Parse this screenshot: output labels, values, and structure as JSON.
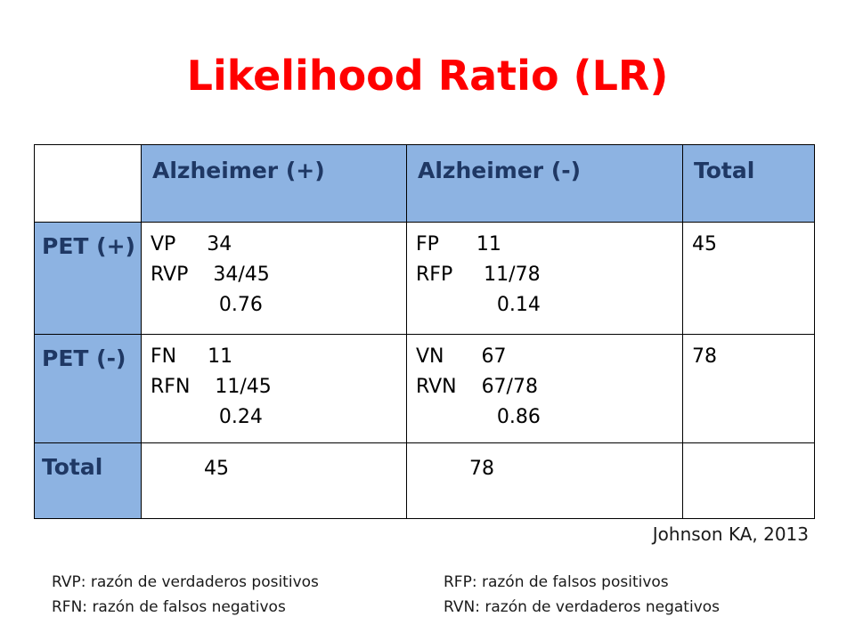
{
  "title": "Likelihood Ratio (LR)",
  "table": {
    "headers": [
      "",
      "Alzheimer (+)",
      "Alzheimer (-)",
      "Total"
    ],
    "rows": [
      {
        "label": "PET (+)",
        "cells": [
          [
            "VP     34",
            "RVP    34/45",
            "           0.76"
          ],
          [
            "FP      11",
            "RFP     11/78",
            "             0.14"
          ],
          [
            "45"
          ]
        ]
      },
      {
        "label": "PET (-)",
        "cells": [
          [
            "FN     11",
            "RFN    11/45",
            "           0.24"
          ],
          [
            "VN      67",
            "RVN    67/78",
            "             0.86"
          ],
          [
            "78"
          ]
        ]
      },
      {
        "label": "Total",
        "cells": [
          [
            "45"
          ],
          [
            "78"
          ],
          [
            ""
          ]
        ]
      }
    ]
  },
  "citation": "Johnson KA, 2013",
  "notes": {
    "rvp": "RVP: razón de verdaderos positivos",
    "rfp": "RFP: razón de falsos positivos",
    "rfn": "RFN: razón de falsos negativos",
    "rvn": "RVN: razón de verdaderos negativos"
  },
  "colors": {
    "title": "#ff0000",
    "header_fill": "#8db3e2",
    "header_text": "#1f3864"
  }
}
